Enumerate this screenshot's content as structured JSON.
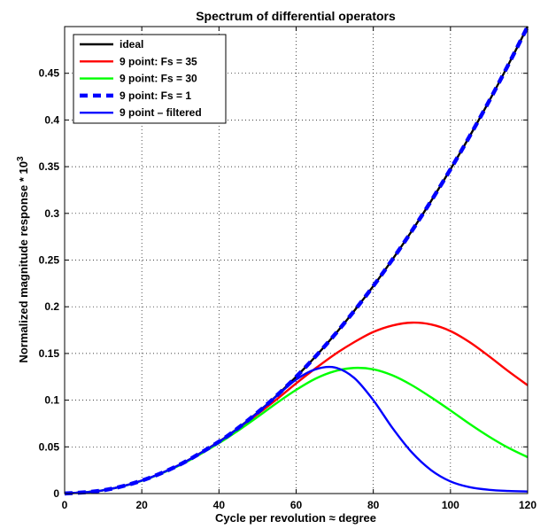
{
  "chart_data": {
    "type": "line",
    "title": "Spectrum of differential operators",
    "xlabel": "Cycle per revolution ≈ degree",
    "ylabel": "Normalized magnitude response * 10",
    "ylabel_superscript": "3",
    "xlim": [
      0,
      120
    ],
    "ylim": [
      0,
      0.5
    ],
    "xticks": [
      "0",
      "20",
      "40",
      "60",
      "80",
      "100",
      "120"
    ],
    "yticks": [
      "0",
      "0.05",
      "0.1",
      "0.15",
      "0.2",
      "0.25",
      "0.3",
      "0.35",
      "0.4",
      "0.45"
    ],
    "grid": true,
    "legend_position": "top-left",
    "x": [
      0,
      10,
      20,
      30,
      40,
      45,
      50,
      55,
      60,
      65,
      70,
      75,
      80,
      85,
      90,
      95,
      100,
      105,
      110,
      115,
      120
    ],
    "series": [
      {
        "name": "ideal",
        "color": "#000000",
        "style": "solid",
        "values": [
          0,
          0.0035,
          0.0139,
          0.0313,
          0.0556,
          0.0703,
          0.0868,
          0.105,
          0.125,
          0.1467,
          0.1701,
          0.1953,
          0.2222,
          0.2509,
          0.2813,
          0.3134,
          0.3472,
          0.3828,
          0.4201,
          0.4592,
          0.5
        ]
      },
      {
        "name": "9 point: Fs = 35",
        "color": "#ff0000",
        "style": "solid",
        "values": [
          0,
          0.0035,
          0.0138,
          0.031,
          0.055,
          0.069,
          0.085,
          0.101,
          0.118,
          0.134,
          0.149,
          0.162,
          0.173,
          0.18,
          0.183,
          0.181,
          0.174,
          0.162,
          0.147,
          0.131,
          0.116
        ]
      },
      {
        "name": "9 point: Fs = 30",
        "color": "#00ff00",
        "style": "solid",
        "values": [
          0,
          0.0035,
          0.0137,
          0.0305,
          0.054,
          0.0675,
          0.082,
          0.097,
          0.111,
          0.123,
          0.131,
          0.1345,
          0.133,
          0.1265,
          0.116,
          0.103,
          0.089,
          0.0745,
          0.061,
          0.049,
          0.039
        ]
      },
      {
        "name": "9 point: Fs = 1",
        "color": "#0000ff",
        "style": "dashed",
        "values": [
          0,
          0.0035,
          0.0139,
          0.0313,
          0.0556,
          0.0703,
          0.0868,
          0.105,
          0.125,
          0.1467,
          0.1701,
          0.1953,
          0.2222,
          0.2509,
          0.2813,
          0.3134,
          0.3472,
          0.3828,
          0.4201,
          0.4592,
          0.5
        ]
      },
      {
        "name": "9 point – filtered",
        "color": "#0000ff",
        "style": "solid",
        "values": [
          0,
          0.0035,
          0.0139,
          0.0312,
          0.0553,
          0.07,
          0.0865,
          0.1045,
          0.122,
          0.133,
          0.135,
          0.124,
          0.1,
          0.07,
          0.044,
          0.025,
          0.013,
          0.0068,
          0.004,
          0.0028,
          0.0022
        ]
      }
    ]
  }
}
